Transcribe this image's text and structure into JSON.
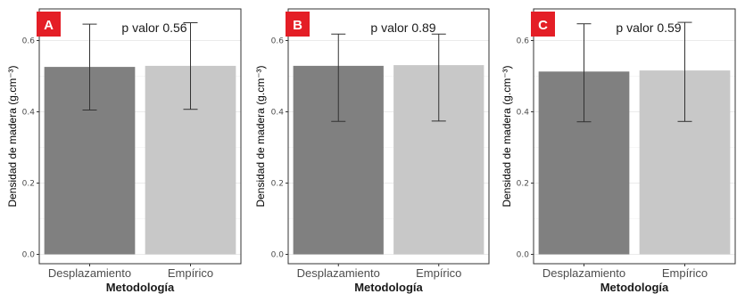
{
  "colors": {
    "bar_dark": "#808080",
    "bar_light": "#c8c8c8",
    "badge": "#e41e26",
    "panel_border": "#333333",
    "grid": "#ebebeb",
    "errorbar": "#333333"
  },
  "chart_data": [
    {
      "type": "bar",
      "badge": "A",
      "annotation": "p valor 0.56",
      "xlabel": "Metodología",
      "ylabel": "Densidad de madera (g.cm⁻³)",
      "categories": [
        "Desplazamiento",
        "Empírico"
      ],
      "values": [
        0.526,
        0.529
      ],
      "error_low": [
        0.405,
        0.407
      ],
      "error_high": [
        0.646,
        0.65
      ],
      "yticks": [
        "0.0",
        "0.2",
        "0.4",
        "0.6"
      ],
      "ylim": [
        0,
        0.66
      ],
      "grid": true
    },
    {
      "type": "bar",
      "badge": "B",
      "annotation": "p valor 0.89",
      "xlabel": "Metodología",
      "ylabel": "Densidad de madera (g.cm⁻³)",
      "categories": [
        "Desplazamiento",
        "Empírico"
      ],
      "values": [
        0.529,
        0.531
      ],
      "error_low": [
        0.373,
        0.374
      ],
      "error_high": [
        0.618,
        0.618
      ],
      "yticks": [
        "0.0",
        "0.2",
        "0.4",
        "0.6"
      ],
      "ylim": [
        0,
        0.66
      ],
      "grid": true
    },
    {
      "type": "bar",
      "badge": "C",
      "annotation": "p valor 0.59",
      "xlabel": "Metodología",
      "ylabel": "Densidad de madera (g.cm⁻³)",
      "categories": [
        "Desplazamiento",
        "Empírico"
      ],
      "values": [
        0.513,
        0.516
      ],
      "error_low": [
        0.372,
        0.373
      ],
      "error_high": [
        0.647,
        0.651
      ],
      "yticks": [
        "0.0",
        "0.2",
        "0.4",
        "0.6"
      ],
      "ylim": [
        0,
        0.66
      ],
      "grid": true
    }
  ]
}
